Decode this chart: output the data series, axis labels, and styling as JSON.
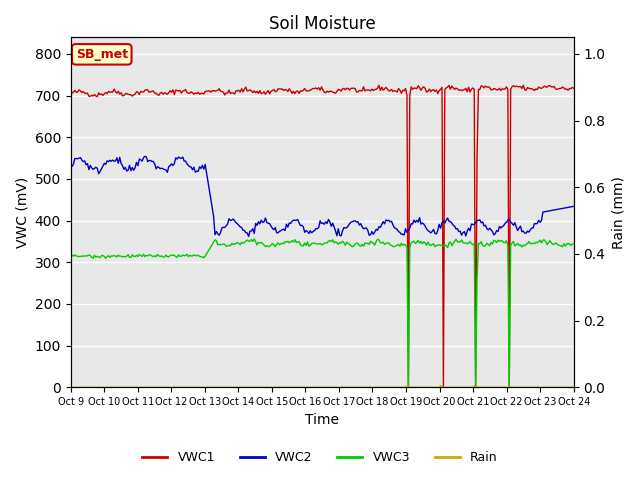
{
  "title": "Soil Moisture",
  "xlabel": "Time",
  "ylabel_left": "VWC (mV)",
  "ylabel_right": "Rain (mm)",
  "xlim": [
    0,
    15
  ],
  "ylim_left": [
    0,
    840
  ],
  "ylim_right": [
    0,
    1.05
  ],
  "yticks_left": [
    0,
    100,
    200,
    300,
    400,
    500,
    600,
    700,
    800
  ],
  "yticks_right": [
    0.0,
    0.2,
    0.4,
    0.6,
    0.8,
    1.0
  ],
  "x_tick_labels": [
    "Oct 9",
    "Oct 10",
    "Oct 11",
    "Oct 12",
    "Oct 13",
    "Oct 14",
    "Oct 15",
    "Oct 16",
    "Oct 17",
    "Oct 18",
    "Oct 19",
    "Oct 20",
    "Oct 21",
    "Oct 22",
    "Oct 23",
    "Oct 24"
  ],
  "bg_color": "#e8e8e8",
  "grid_color": "#ffffff",
  "annotation_text": "SB_met",
  "annotation_bg": "#ffffcc",
  "annotation_border": "#cc0000",
  "annotation_text_color": "#cc0000",
  "vwc1_color": "#cc0000",
  "vwc2_color": "#0000cc",
  "vwc3_color": "#00cc00",
  "rain_color": "#ccaa00",
  "legend_entries": [
    "VWC1",
    "VWC2",
    "VWC3",
    "Rain"
  ]
}
